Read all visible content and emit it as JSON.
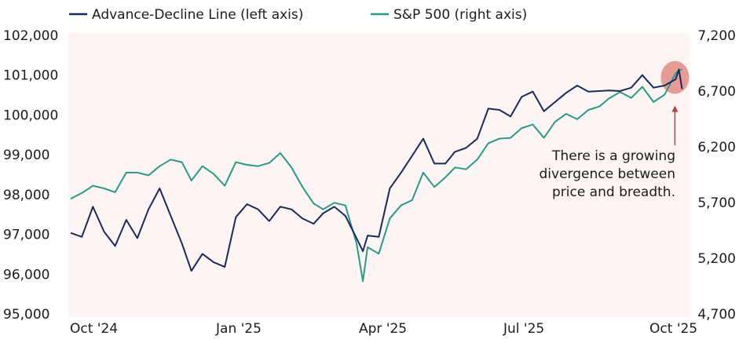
{
  "chart_data": {
    "type": "line",
    "title": "",
    "xlabel": "",
    "ylabel_left": "",
    "ylabel_right": "",
    "x_ticks": [
      "Oct '24",
      "Jan '25",
      "Apr '25",
      "Jul '25",
      "Oct '25"
    ],
    "x_tick_dates": [
      "2024-10-01",
      "2025-01-01",
      "2025-04-01",
      "2025-07-01",
      "2025-10-01"
    ],
    "xlim": [
      "2024-09-30",
      "2025-10-28"
    ],
    "y_left": {
      "lim": [
        95000,
        102000
      ],
      "ticks": [
        "95,000",
        "96,000",
        "97,000",
        "98,000",
        "99,000",
        "100,000",
        "101,000",
        "102,000"
      ],
      "tick_values": [
        95000,
        96000,
        97000,
        98000,
        99000,
        100000,
        101000,
        102000
      ]
    },
    "y_right": {
      "lim": [
        4700,
        7200
      ],
      "ticks": [
        "4,700",
        "5,200",
        "5,700",
        "6,200",
        "6,700",
        "7,200"
      ],
      "tick_values": [
        4700,
        5200,
        5700,
        6200,
        6700,
        7200
      ]
    },
    "grid": false,
    "legend_position": "top",
    "background": "#fdf5f4",
    "dates": [
      "2024-10-02",
      "2024-10-09",
      "2024-10-16",
      "2024-10-23",
      "2024-10-30",
      "2024-11-06",
      "2024-11-13",
      "2024-11-20",
      "2024-11-27",
      "2024-12-04",
      "2024-12-11",
      "2024-12-17",
      "2024-12-24",
      "2024-12-31",
      "2025-01-07",
      "2025-01-14",
      "2025-01-21",
      "2025-01-28",
      "2025-02-04",
      "2025-02-11",
      "2025-02-18",
      "2025-02-25",
      "2025-03-04",
      "2025-03-10",
      "2025-03-17",
      "2025-03-24",
      "2025-03-31",
      "2025-04-04",
      "2025-04-07",
      "2025-04-14",
      "2025-04-21",
      "2025-04-28",
      "2025-05-05",
      "2025-05-12",
      "2025-05-19",
      "2025-05-26",
      "2025-06-01",
      "2025-06-08",
      "2025-06-15",
      "2025-06-22",
      "2025-06-29",
      "2025-07-06",
      "2025-07-13",
      "2025-07-20",
      "2025-07-27",
      "2025-08-03",
      "2025-08-10",
      "2025-08-17",
      "2025-08-24",
      "2025-08-31",
      "2025-09-06",
      "2025-09-13",
      "2025-09-20",
      "2025-09-27",
      "2025-10-04",
      "2025-10-11",
      "2025-10-18",
      "2025-10-20",
      "2025-10-22"
    ],
    "series": [
      {
        "name": "Advance-Decline Line (left axis)",
        "axis": "left",
        "color": "#1b2a5c",
        "values": [
          97036,
          96937,
          97694,
          97069,
          96707,
          97365,
          96905,
          97628,
          98154,
          97464,
          96773,
          96083,
          96510,
          96300,
          96181,
          97431,
          97759,
          97628,
          97332,
          97694,
          97628,
          97398,
          97266,
          97529,
          97694,
          97464,
          96905,
          96576,
          96970,
          96937,
          98154,
          98548,
          98976,
          99403,
          98779,
          98779,
          99074,
          99173,
          99403,
          100159,
          100126,
          99962,
          100455,
          100587,
          100093,
          100324,
          100554,
          100738,
          100587,
          100600,
          100613,
          100600,
          100685,
          101001,
          100685,
          100738,
          100896,
          101145,
          100652
        ]
      },
      {
        "name": "S&P 500 (right axis)",
        "axis": "right",
        "color": "#2a9a85",
        "values": [
          5733,
          5785,
          5850,
          5827,
          5792,
          5968,
          5968,
          5944,
          6026,
          6085,
          6062,
          5897,
          6026,
          5956,
          5850,
          6062,
          6038,
          6026,
          6055,
          6144,
          6015,
          5839,
          5691,
          5639,
          5698,
          5674,
          5334,
          4994,
          5299,
          5240,
          5557,
          5674,
          5721,
          5968,
          5839,
          5926,
          6015,
          5998,
          6085,
          6231,
          6273,
          6280,
          6367,
          6400,
          6280,
          6423,
          6496,
          6447,
          6531,
          6562,
          6634,
          6691,
          6639,
          6738,
          6602,
          6667,
          6860,
          6883,
          6895
        ]
      }
    ],
    "annotation": {
      "lines": [
        "There is a growing",
        "divergence between",
        "price and breadth."
      ],
      "highlight_color": "#e38b84",
      "arrow_color": "#b5403a"
    }
  }
}
